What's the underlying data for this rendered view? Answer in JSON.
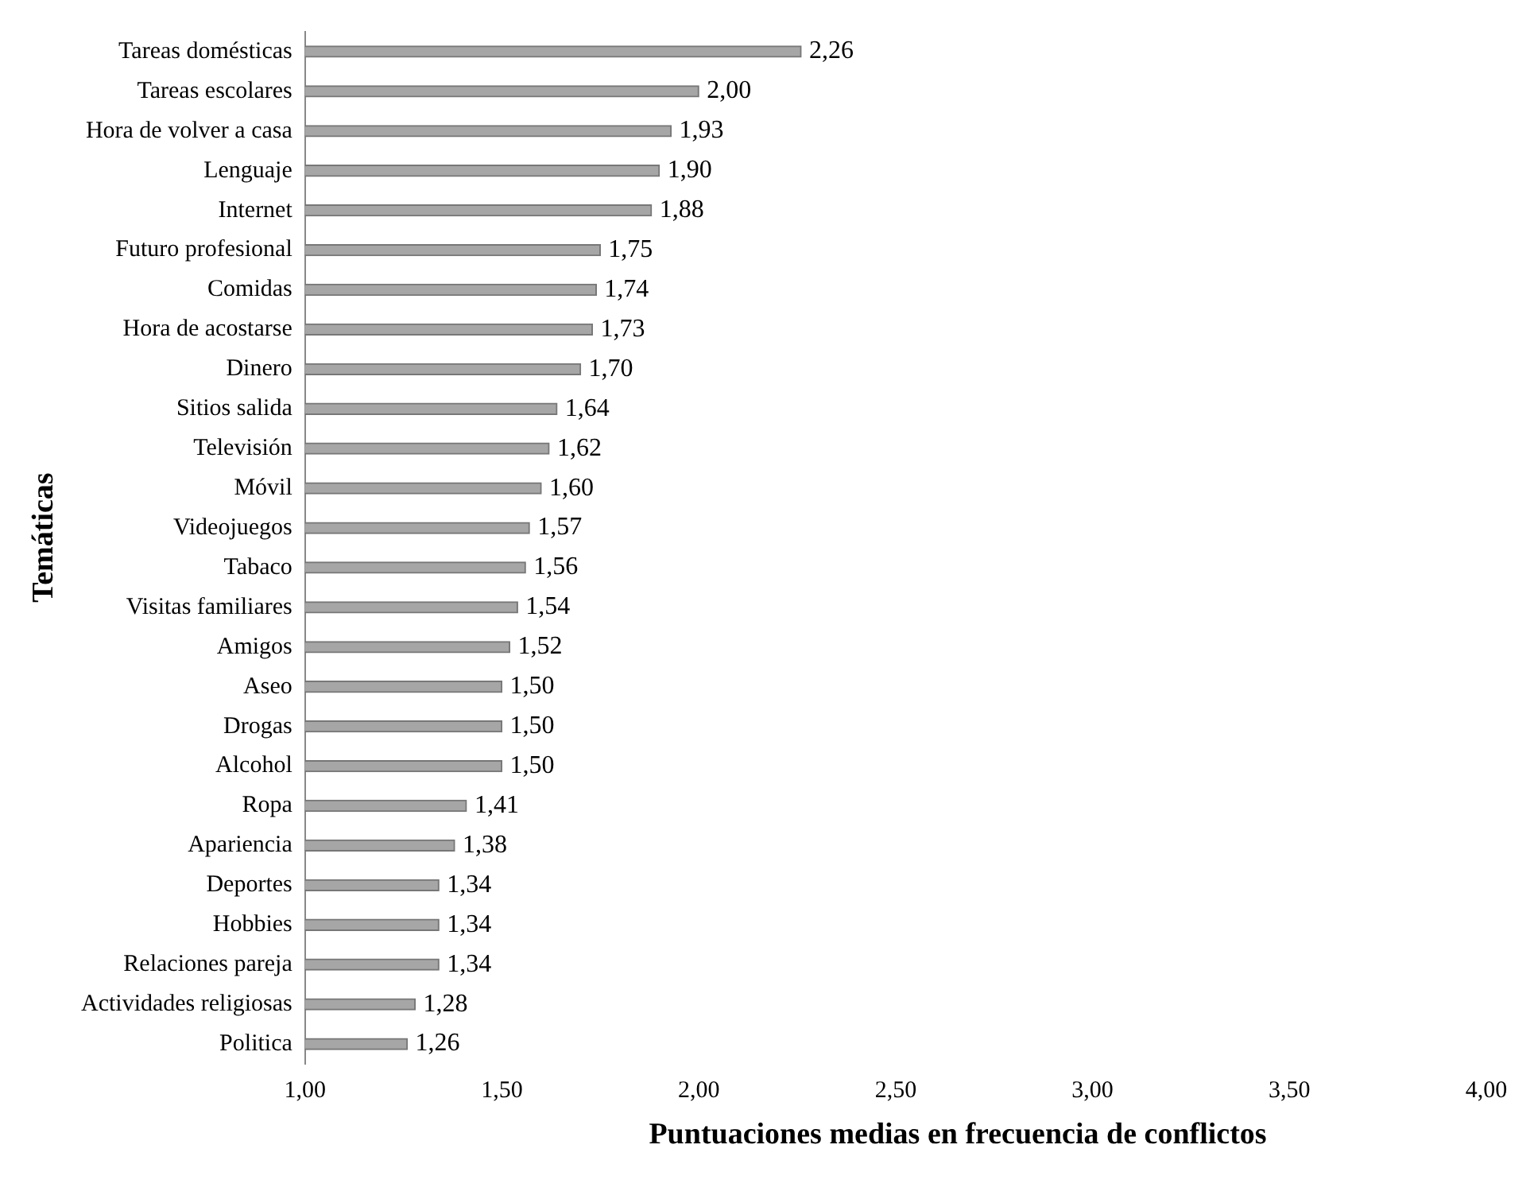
{
  "chart_data": {
    "type": "bar",
    "orientation": "horizontal",
    "xlabel": "Puntuaciones medias en frecuencia de conflictos",
    "ylabel": "Temáticas",
    "categories": [
      "Tareas domésticas",
      "Tareas escolares",
      "Hora de volver a casa",
      "Lenguaje",
      "Internet",
      "Futuro profesional",
      "Comidas",
      "Hora de acostarse",
      "Dinero",
      "Sitios salida",
      "Televisión",
      "Móvil",
      "Videojuegos",
      "Tabaco",
      "Visitas familiares",
      "Amigos",
      "Aseo",
      "Drogas",
      "Alcohol",
      "Ropa",
      "Apariencia",
      "Deportes",
      "Hobbies",
      "Relaciones pareja",
      "Actividades religiosas",
      "Politica"
    ],
    "values": [
      2.26,
      2.0,
      1.93,
      1.9,
      1.88,
      1.75,
      1.74,
      1.73,
      1.7,
      1.64,
      1.62,
      1.6,
      1.57,
      1.56,
      1.54,
      1.52,
      1.5,
      1.5,
      1.5,
      1.41,
      1.38,
      1.34,
      1.34,
      1.34,
      1.28,
      1.26
    ],
    "value_labels": [
      "2,26",
      "2,00",
      "1,93",
      "1,90",
      "1,88",
      "1,75",
      "1,74",
      "1,73",
      "1,70",
      "1,64",
      "1,62",
      "1,60",
      "1,57",
      "1,56",
      "1,54",
      "1,52",
      "1,50",
      "1,50",
      "1,50",
      "1,41",
      "1,38",
      "1,34",
      "1,34",
      "1,34",
      "1,28",
      "1,26"
    ],
    "color": "#a6a6a6",
    "xlim": [
      1,
      4
    ],
    "xticks": [
      {
        "value": 1,
        "label": "1,00"
      },
      {
        "value": 1.5,
        "label": "1,50"
      },
      {
        "value": 2,
        "label": "2,00"
      },
      {
        "value": 2.5,
        "label": "2,50"
      },
      {
        "value": 3,
        "label": "3,00"
      },
      {
        "value": 3.5,
        "label": "3,50"
      },
      {
        "value": 4,
        "label": "4,00"
      }
    ],
    "grid": false,
    "legend": false
  }
}
